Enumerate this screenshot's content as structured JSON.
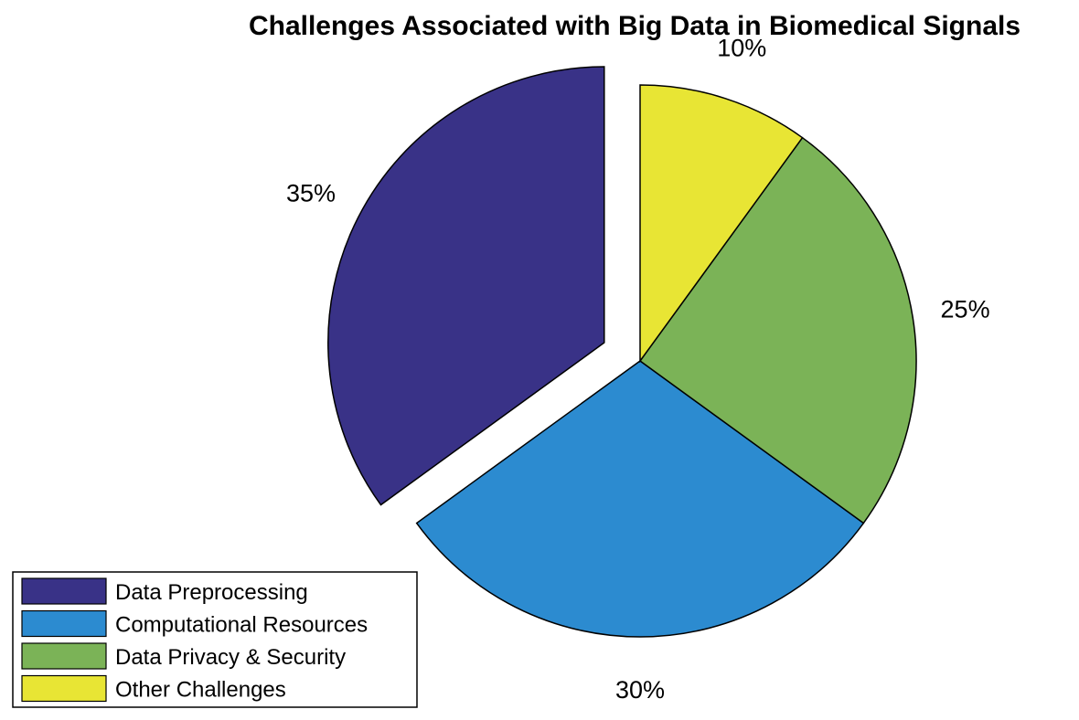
{
  "chart_data": {
    "type": "pie",
    "title": "Challenges Associated with Big Data in Biomedical Signals",
    "slices": [
      {
        "label": "Data Preprocessing",
        "value": 35,
        "value_label": "35%",
        "color": "#393287",
        "exploded": true
      },
      {
        "label": "Computational Resources",
        "value": 30,
        "value_label": "30%",
        "color": "#2c8bd0",
        "exploded": false
      },
      {
        "label": "Data Privacy & Security",
        "value": 25,
        "value_label": "25%",
        "color": "#7bb357",
        "exploded": false
      },
      {
        "label": "Other Challenges",
        "value": 10,
        "value_label": "10%",
        "color": "#e8e534",
        "exploded": false
      }
    ],
    "legend_position": "bottom-left"
  }
}
